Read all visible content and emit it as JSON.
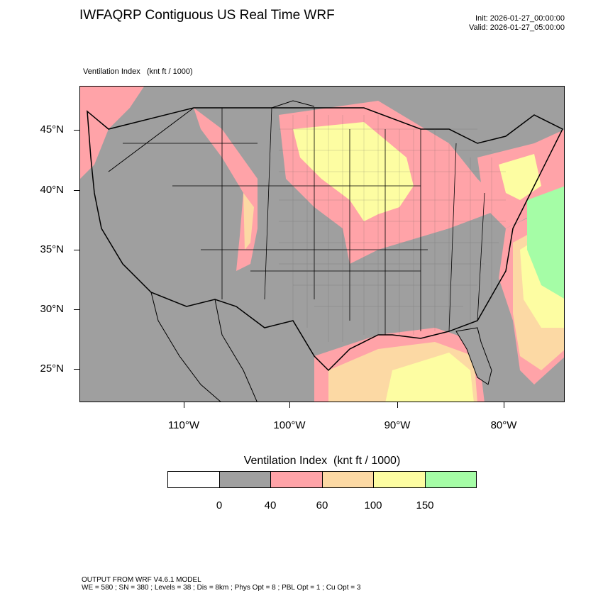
{
  "header": {
    "title": "IWFAQRP Contiguous US Real Time WRF",
    "init": "Init: 2026-01-27_00:00:00",
    "valid": "Valid: 2026-01-27_05:00:00"
  },
  "plot": {
    "subtitle": "Ventilation Index   (knt ft / 1000)",
    "lat_labels": [
      "45°N",
      "40°N",
      "35°N",
      "30°N",
      "25°N"
    ],
    "lon_labels": [
      "110°W",
      "100°W",
      "90°W",
      "80°W"
    ]
  },
  "legend": {
    "title": "Ventilation Index  (knt ft / 1000)",
    "colors": [
      "#ffffff",
      "#a0a0a0",
      "#ffa3a8",
      "#fcd9a4",
      "#fdfda2",
      "#a5fda6"
    ],
    "labels": [
      "0",
      "40",
      "60",
      "100",
      "150"
    ]
  },
  "footer": {
    "line1": "OUTPUT FROM WRF V4.6.1 MODEL",
    "line2": "WE = 580 ; SN = 380 ; Levels = 38 ; Dis = 8km ; Phys Opt = 8 ; PBL Opt = 1 ; Cu Opt = 3"
  }
}
